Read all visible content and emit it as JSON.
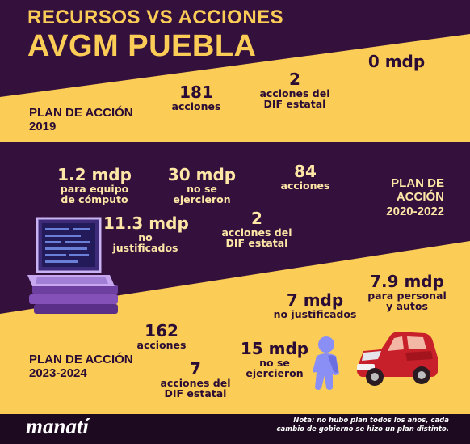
{
  "title": {
    "line1": "RECURSOS VS ACCIONES",
    "line2": "AVGM PUEBLA"
  },
  "colors": {
    "purple": "#34103d",
    "yellow": "#fbcd57",
    "dark_text": "#2b0c34",
    "light_text": "#fde6a6"
  },
  "plan_2019": {
    "label_line1": "PLAN DE ACCIÓN",
    "label_line2": "2019",
    "actions_value": "181",
    "actions_label": "acciones",
    "dif_value": "2",
    "dif_label_line1": "acciones del",
    "dif_label_line2": "DIF estatal",
    "budget_value": "0 mdp"
  },
  "plan_2020_2022": {
    "label_line1": "PLAN DE ACCIÓN",
    "label_line2": "2020-2022",
    "equipment_value": "1.2 mdp",
    "equipment_label_line1": "para equipo",
    "equipment_label_line2": "de cómputo",
    "unspent_value": "30 mdp",
    "unspent_label_line1": "no se",
    "unspent_label_line2": "ejercieron",
    "actions_value": "84",
    "actions_label": "acciones",
    "unjustified_value": "11.3 mdp",
    "unjustified_label_line1": "no",
    "unjustified_label_line2": "justificados",
    "dif_value": "2",
    "dif_label_line1": "acciones del",
    "dif_label_line2": "DIF estatal"
  },
  "plan_2023_2024": {
    "label_line1": "PLAN DE ACCIÓN",
    "label_line2": "2023-2024",
    "actions_value": "162",
    "actions_label": "acciones",
    "dif_value": "7",
    "dif_label_line1": "acciones del",
    "dif_label_line2": "DIF estatal",
    "unjustified_value": "7 mdp",
    "unjustified_label": "no justificados",
    "unspent_value": "15 mdp",
    "unspent_label_line1": "no se",
    "unspent_label_line2": "ejercieron",
    "staff_value": "7.9 mdp",
    "staff_label_line1": "para personal",
    "staff_label_line2": "y autos"
  },
  "footer": {
    "logo": "manatí",
    "note_line1": "Nota: no hubo plan todos los años, cada",
    "note_line2": "cambio de gobierno se hizo un plan distinto."
  },
  "icons": {
    "laptop": "laptop-icon",
    "person": "person-icon",
    "car": "car-icon"
  }
}
